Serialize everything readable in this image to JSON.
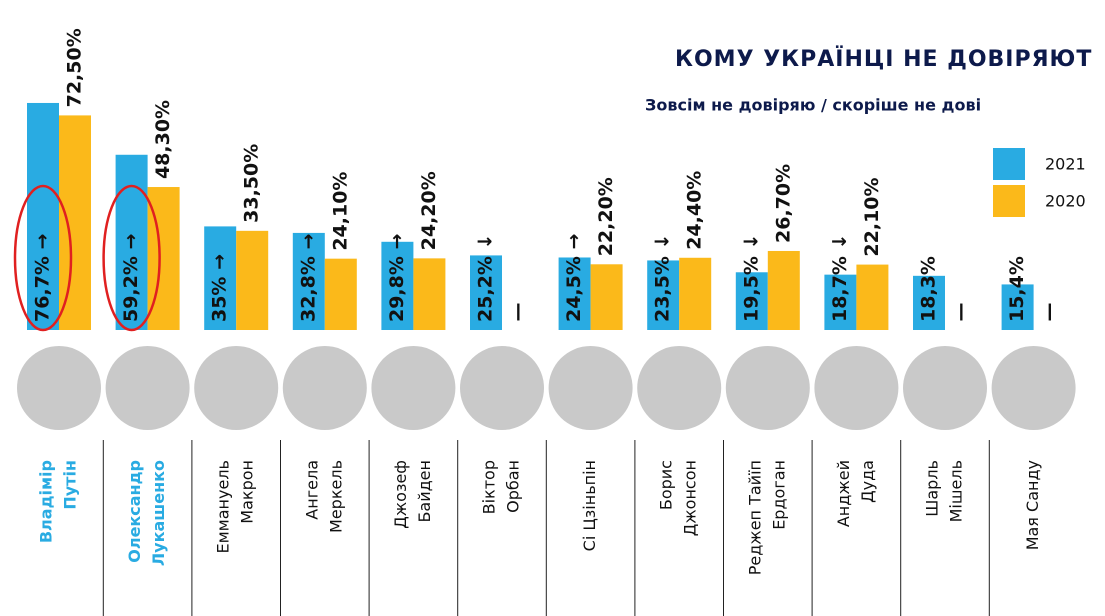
{
  "chart_data": {
    "type": "bar",
    "title": "КОМУ УКРАЇНЦІ НЕ ДОВІРЯЮТ",
    "subtitle": "Зовсім не довіряю / скоріше не дові",
    "categories": [
      [
        "Владімір",
        "Путін"
      ],
      [
        "Олександр",
        "Лукашенко"
      ],
      [
        "Еммануель",
        "Макрон"
      ],
      [
        "Ангела",
        "Меркель"
      ],
      [
        "Джозеф",
        "Байден"
      ],
      [
        "Віктор",
        "Орбан"
      ],
      [
        "Сі Цзіньпін"
      ],
      [
        "Борис",
        "Джонсон"
      ],
      [
        "Реджеп Тайїп",
        "Ердоган"
      ],
      [
        "Анджей",
        "Дуда"
      ],
      [
        "Шарль",
        "Мішель"
      ],
      [
        "Мая Санду"
      ]
    ],
    "highlight": {
      "color": "#29abe2",
      "indices": [
        0,
        1
      ]
    },
    "series": [
      {
        "name": "2021",
        "color": "#29abe2",
        "values": [
          76.7,
          59.2,
          35,
          32.8,
          29.8,
          25.2,
          24.5,
          23.5,
          19.5,
          18.7,
          18.3,
          15.4
        ],
        "value_labels": [
          "76,7% →",
          "59,2% →",
          "35% →",
          "32,8% →",
          "29,8% →",
          "25,2% ↓",
          "24,5% →",
          "23,5% ↓",
          "19,5% ↓",
          "18,7% ↓",
          "18,3%",
          "15,4%"
        ]
      },
      {
        "name": "2020",
        "color": "#fbb91a",
        "values": [
          72.5,
          48.3,
          33.5,
          24.1,
          24.2,
          null,
          22.2,
          24.4,
          26.7,
          22.1,
          null,
          null
        ],
        "value_labels": [
          "72,50%",
          "48,30%",
          "33,50%",
          "24,10%",
          "24,20%",
          "—",
          "22,20%",
          "24,40%",
          "26,70%",
          "22,10%",
          "—",
          "—"
        ]
      }
    ]
  }
}
